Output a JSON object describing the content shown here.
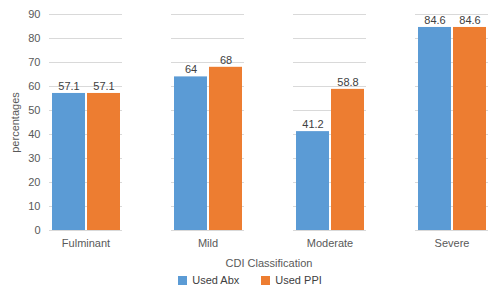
{
  "chart_data": {
    "type": "bar",
    "x_label": "CDI Classification",
    "y_label": "percentages",
    "categories": [
      "Fulminant",
      "Mild",
      "Moderate",
      "Severe"
    ],
    "series": [
      {
        "name": "Used Abx",
        "color": "#5b9bd5",
        "values": [
          57.1,
          64,
          41.2,
          84.6
        ]
      },
      {
        "name": "Used PPI",
        "color": "#ed7d31",
        "values": [
          57.1,
          68,
          58.8,
          84.6
        ]
      }
    ],
    "ylim": [
      0,
      90
    ],
    "yticks": [
      0,
      10,
      20,
      30,
      40,
      50,
      60,
      70,
      80,
      90
    ],
    "grid": true,
    "data_labels": true,
    "legend": "bottom"
  }
}
